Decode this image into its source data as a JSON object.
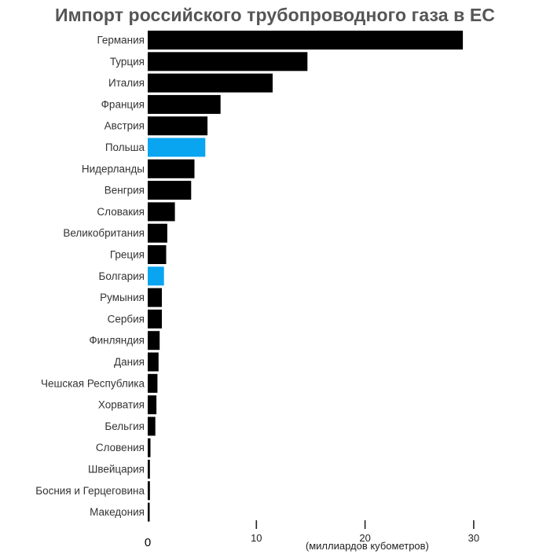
{
  "chart_data": {
    "type": "bar",
    "orientation": "horizontal",
    "title": "Импорт российского трубопроводного газа в ЕС",
    "xlabel": "(миллиардов кубометров)",
    "ylabel": "",
    "xlim": [
      0,
      30
    ],
    "x_ticks": [
      10,
      20,
      30
    ],
    "zero_label": "0",
    "grid": false,
    "colors": {
      "default": "#000000",
      "highlight": "#0aa5f0"
    },
    "categories": [
      "Германия",
      "Турция",
      "Италия",
      "Франция",
      "Австрия",
      "Польша",
      "Нидерланды",
      "Венгрия",
      "Словакия",
      "Великобритания",
      "Греция",
      "Болгария",
      "Румыния",
      "Сербия",
      "Финляндия",
      "Дания",
      "Чешская Республика",
      "Хорватия",
      "Бельгия",
      "Словения",
      "Швейцария",
      "Босния и Герцеговина",
      "Македония"
    ],
    "values": [
      29.0,
      14.7,
      11.5,
      6.7,
      5.5,
      5.3,
      4.3,
      4.0,
      2.5,
      1.8,
      1.7,
      1.5,
      1.3,
      1.3,
      1.1,
      1.0,
      0.9,
      0.8,
      0.7,
      0.25,
      0.2,
      0.2,
      0.15
    ],
    "highlighted": [
      "Польша",
      "Болгария"
    ]
  }
}
